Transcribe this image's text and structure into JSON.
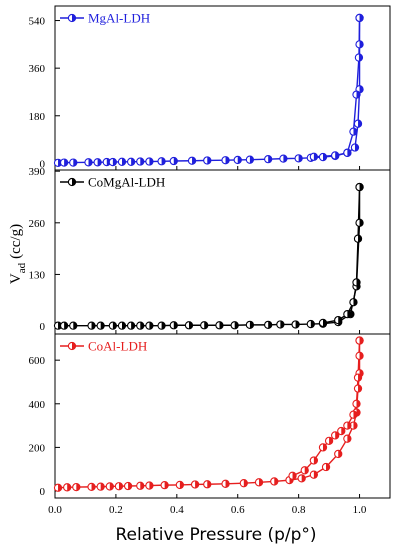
{
  "chart_data": {
    "type": "line",
    "xlabel": "Relative Pressure (p/p°)",
    "ylabel_main": "V",
    "ylabel_sub": "ad",
    "ylabel_unit": "(cc/g)",
    "x_ticks": [
      "0.0",
      "0.2",
      "0.4",
      "0.6",
      "0.8",
      "1.0"
    ],
    "xlim": [
      0,
      1.1
    ],
    "panels": [
      {
        "name": "MgAl-LDH",
        "color": "#1f1fdc",
        "ylim": [
          -25,
          595
        ],
        "y_ticks": [
          0,
          180,
          360,
          540
        ],
        "adsorption": [
          [
            0.01,
            2
          ],
          [
            0.03,
            3
          ],
          [
            0.06,
            3
          ],
          [
            0.11,
            4
          ],
          [
            0.14,
            4
          ],
          [
            0.17,
            5
          ],
          [
            0.19,
            5
          ],
          [
            0.22,
            6
          ],
          [
            0.25,
            6
          ],
          [
            0.28,
            7
          ],
          [
            0.31,
            7
          ],
          [
            0.35,
            8
          ],
          [
            0.39,
            9
          ],
          [
            0.45,
            10
          ],
          [
            0.5,
            11
          ],
          [
            0.56,
            12
          ],
          [
            0.6,
            13
          ],
          [
            0.64,
            14
          ],
          [
            0.7,
            16
          ],
          [
            0.75,
            18
          ],
          [
            0.8,
            19
          ],
          [
            0.84,
            21
          ],
          [
            0.88,
            24
          ],
          [
            0.92,
            28
          ],
          [
            0.96,
            40
          ],
          [
            0.985,
            60
          ],
          [
            0.995,
            150
          ],
          [
            1.0,
            280
          ],
          [
            1.0,
            450
          ],
          [
            1.0,
            550
          ]
        ],
        "desorption": [
          [
            1.0,
            550
          ],
          [
            0.998,
            400
          ],
          [
            0.99,
            260
          ],
          [
            0.98,
            120
          ],
          [
            0.96,
            40
          ],
          [
            0.92,
            30
          ],
          [
            0.85,
            25
          ]
        ]
      },
      {
        "name": "CoMgAl-LDH",
        "color": "#000000",
        "ylim": [
          -20,
          393
        ],
        "y_ticks": [
          0,
          130,
          260,
          390
        ],
        "adsorption": [
          [
            0.01,
            1
          ],
          [
            0.03,
            1
          ],
          [
            0.06,
            1
          ],
          [
            0.12,
            1
          ],
          [
            0.15,
            1
          ],
          [
            0.19,
            1
          ],
          [
            0.22,
            1
          ],
          [
            0.25,
            1
          ],
          [
            0.28,
            1
          ],
          [
            0.31,
            1
          ],
          [
            0.35,
            1
          ],
          [
            0.39,
            2
          ],
          [
            0.44,
            2
          ],
          [
            0.49,
            2
          ],
          [
            0.54,
            2
          ],
          [
            0.59,
            2
          ],
          [
            0.64,
            3
          ],
          [
            0.7,
            3
          ],
          [
            0.74,
            4
          ],
          [
            0.79,
            4
          ],
          [
            0.84,
            5
          ],
          [
            0.88,
            6
          ],
          [
            0.93,
            10
          ],
          [
            0.97,
            30
          ],
          [
            0.99,
            100
          ],
          [
            1.0,
            260
          ],
          [
            1.0,
            350
          ]
        ],
        "desorption": [
          [
            1.0,
            350
          ],
          [
            0.995,
            220
          ],
          [
            0.99,
            110
          ],
          [
            0.98,
            60
          ],
          [
            0.96,
            30
          ],
          [
            0.93,
            15
          ],
          [
            0.88,
            8
          ]
        ]
      },
      {
        "name": "CoAl-LDH",
        "color": "#e61e1e",
        "ylim": [
          -32,
          720
        ],
        "y_ticks": [
          0,
          200,
          400,
          600
        ],
        "adsorption": [
          [
            0.01,
            15
          ],
          [
            0.04,
            17
          ],
          [
            0.07,
            18
          ],
          [
            0.12,
            19
          ],
          [
            0.15,
            20
          ],
          [
            0.18,
            21
          ],
          [
            0.21,
            22
          ],
          [
            0.24,
            23
          ],
          [
            0.28,
            24
          ],
          [
            0.31,
            25
          ],
          [
            0.36,
            27
          ],
          [
            0.41,
            28
          ],
          [
            0.46,
            30
          ],
          [
            0.5,
            31
          ],
          [
            0.56,
            33
          ],
          [
            0.62,
            36
          ],
          [
            0.67,
            40
          ],
          [
            0.72,
            44
          ],
          [
            0.77,
            50
          ],
          [
            0.81,
            58
          ],
          [
            0.85,
            75
          ],
          [
            0.89,
            110
          ],
          [
            0.93,
            170
          ],
          [
            0.96,
            240
          ],
          [
            0.98,
            300
          ],
          [
            0.99,
            360
          ],
          [
            0.995,
            470
          ],
          [
            1.0,
            540
          ],
          [
            1.0,
            620
          ],
          [
            1.0,
            690
          ]
        ],
        "desorption": [
          [
            1.0,
            690
          ],
          [
            0.995,
            520
          ],
          [
            0.99,
            400
          ],
          [
            0.98,
            350
          ],
          [
            0.96,
            300
          ],
          [
            0.94,
            275
          ],
          [
            0.92,
            255
          ],
          [
            0.9,
            230
          ],
          [
            0.88,
            200
          ],
          [
            0.85,
            140
          ],
          [
            0.82,
            95
          ],
          [
            0.78,
            70
          ]
        ]
      }
    ]
  }
}
